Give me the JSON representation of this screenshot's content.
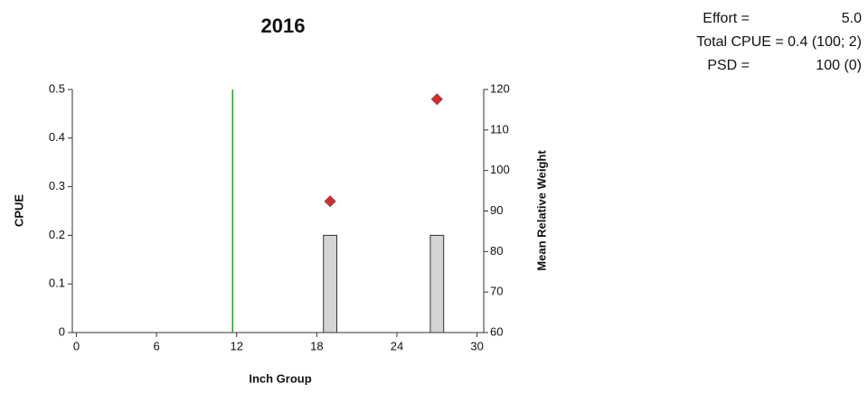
{
  "chart_data": {
    "type": "bar",
    "title": "2016",
    "x": [
      19,
      27
    ],
    "series": [
      {
        "values": [
          0.2,
          0.2
        ],
        "color": "#d4d4d4"
      },
      {
        "values": [
          92.4,
          117.6
        ],
        "color": "#e0262b",
        "axis": "y2"
      }
    ],
    "vline": 11.7,
    "vline_color": "#2a9d2a",
    "xlabel": "Inch Group",
    "ylabel": "CPUE",
    "y2label": "Mean Relative Weight",
    "xlim": [
      -0.3,
      30.5
    ],
    "xticks": [
      0,
      6,
      12,
      18,
      24,
      30
    ],
    "ylim": [
      0,
      0.5
    ],
    "yticks": [
      0,
      0.1,
      0.2,
      0.3,
      0.4,
      0.5
    ],
    "y2lim": [
      60,
      120
    ],
    "y2ticks": [
      60,
      70,
      80,
      90,
      100,
      110,
      120
    ]
  },
  "stats": {
    "effort": {
      "label": "Effort =",
      "value": "5.0"
    },
    "total_cpue": "Total CPUE = 0.4 (100; 2)",
    "psd": {
      "label": "PSD =",
      "value": "100 (0)"
    }
  }
}
